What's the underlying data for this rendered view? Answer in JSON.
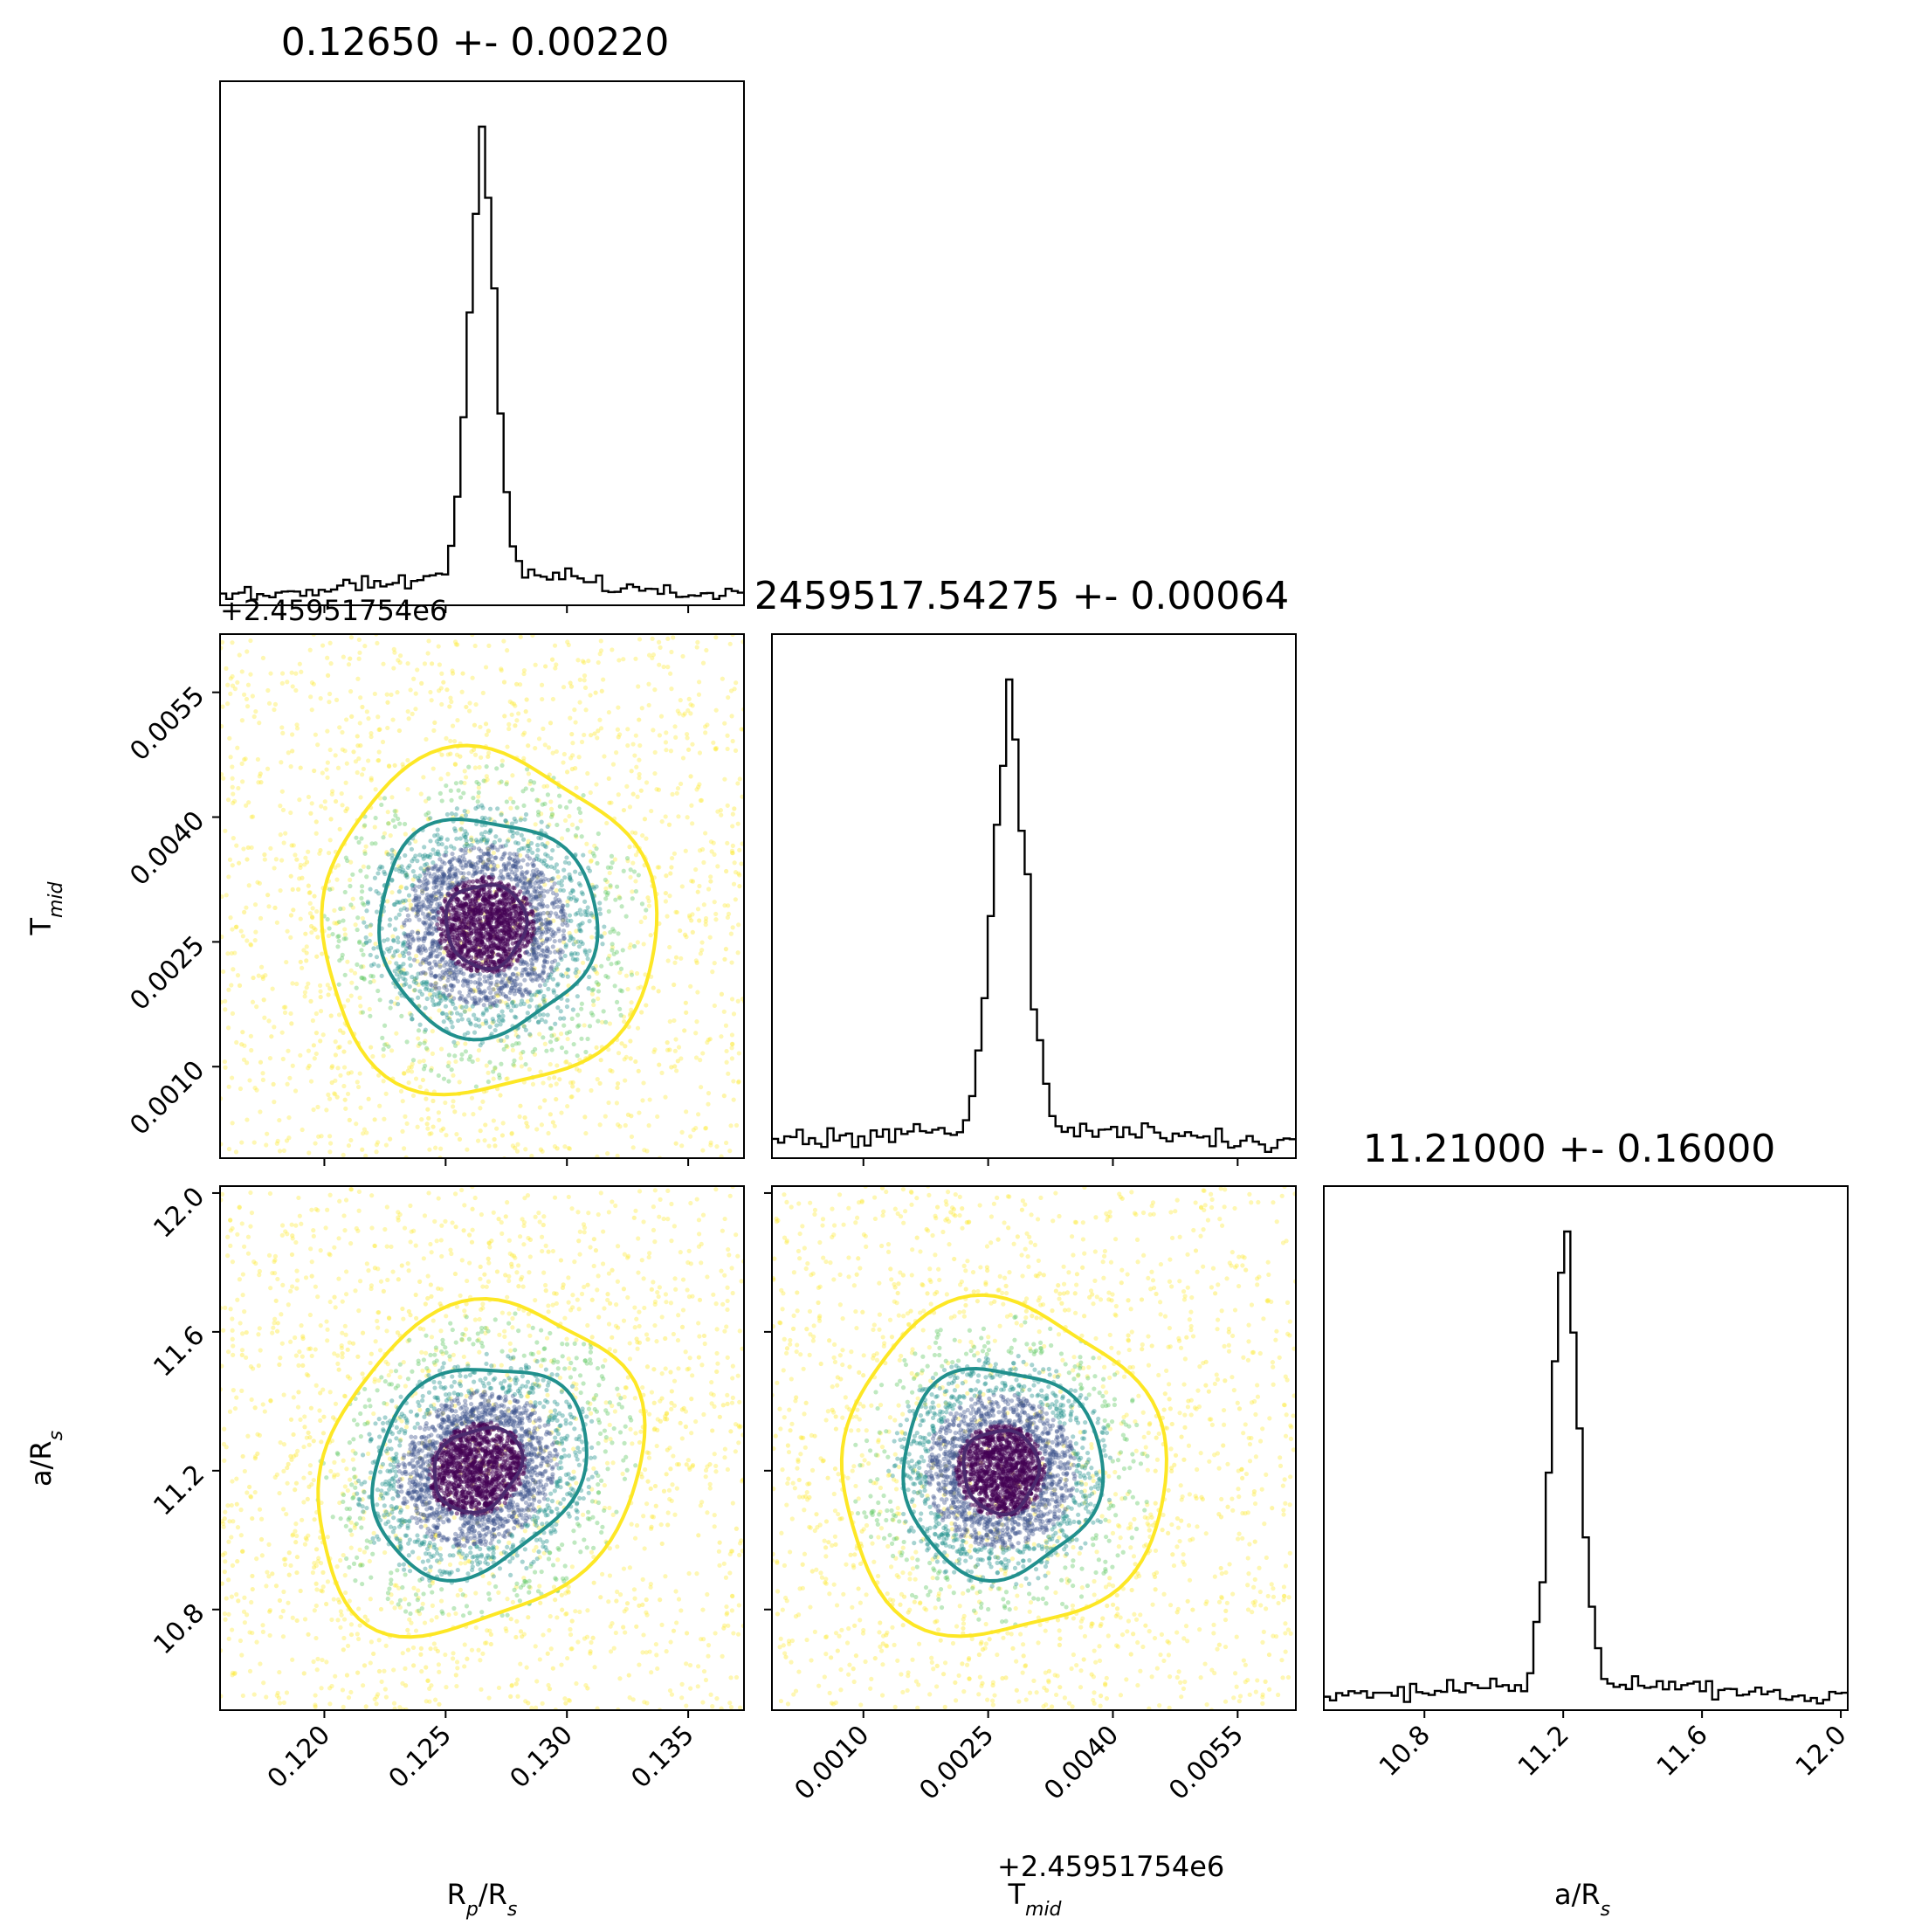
{
  "chart_data": {
    "type": "corner",
    "parameters": [
      {
        "title": "0.12650 +- 0.00220",
        "label_main": "R",
        "label_sub": "p",
        "label_tail": "/R",
        "label_sub2": "s",
        "median": 0.1265,
        "sigma": 0.0022
      },
      {
        "title": "2459517.54275 +- 0.00064",
        "label_main": "T",
        "label_sub": "mid",
        "label_tail": "",
        "label_sub2": "",
        "median": 2459517.54275,
        "sigma": 0.00064
      },
      {
        "title": "11.21000 +- 0.16000",
        "label_main": "a/R",
        "label_sub": "s",
        "label_tail": "",
        "label_sub2": "",
        "median": 11.21,
        "sigma": 0.16
      }
    ],
    "axes": {
      "rp": {
        "range": [
          0.1157,
          0.1373
        ],
        "ticks": [
          0.12,
          0.125,
          0.13,
          0.135
        ],
        "tick_labels": [
          "0.120",
          "0.125",
          "0.130",
          "0.135"
        ]
      },
      "tmid": {
        "range": [
          -0.0001,
          0.0062
        ],
        "ticks": [
          0.001,
          0.0025,
          0.004,
          0.0055
        ],
        "tick_labels": [
          "0.0010",
          "0.0025",
          "0.0040",
          "0.0055"
        ],
        "offset_label": "+2.45951754e6"
      },
      "ar": {
        "range": [
          10.51,
          12.02
        ],
        "ticks": [
          10.8,
          11.2,
          11.6,
          12.0
        ],
        "tick_labels": [
          "10.8",
          "11.2",
          "11.6",
          "12.0"
        ]
      }
    },
    "histograms": [
      {
        "param": "rp",
        "center": 0.1265,
        "core_sigma": 0.00055,
        "tail_sigma": 0.0042,
        "core_weight": 0.55
      },
      {
        "param": "tmid",
        "center": 0.00275,
        "core_sigma": 0.0002,
        "tail_sigma": 0.0019,
        "core_weight": 0.55
      },
      {
        "param": "ar",
        "center": 11.205,
        "core_sigma": 0.04,
        "tail_sigma": 0.42,
        "core_weight": 0.55
      }
    ],
    "contours": {
      "levels": [
        "inner",
        "middle",
        "outer"
      ],
      "colors": [
        "#4b2a6e",
        "#21908d",
        "#fde725"
      ],
      "panels": [
        {
          "x": "rp",
          "y": "tmid",
          "center": [
            0.12665,
            0.0027
          ],
          "radii_x": [
            0.00165,
            0.0045,
            0.0069
          ],
          "radii_y": [
            0.0005,
            0.0013,
            0.00205
          ],
          "tilt": 0.0
        },
        {
          "x": "rp",
          "y": "ar",
          "center": [
            0.1263,
            11.205
          ],
          "radii_x": [
            0.0018,
            0.0044,
            0.0067
          ],
          "radii_y": [
            0.12,
            0.3,
            0.47
          ],
          "tilt": 0.35
        },
        {
          "x": "tmid",
          "y": "ar",
          "center": [
            0.00265,
            11.2
          ],
          "radii_x": [
            0.00045,
            0.0012,
            0.00195
          ],
          "radii_y": [
            0.12,
            0.3,
            0.48
          ],
          "tilt": 0.0
        }
      ]
    },
    "scatter_palette": [
      "#440154",
      "#3b528b",
      "#21908d",
      "#5ec962",
      "#fde725"
    ],
    "grid": false,
    "legend": "none"
  }
}
